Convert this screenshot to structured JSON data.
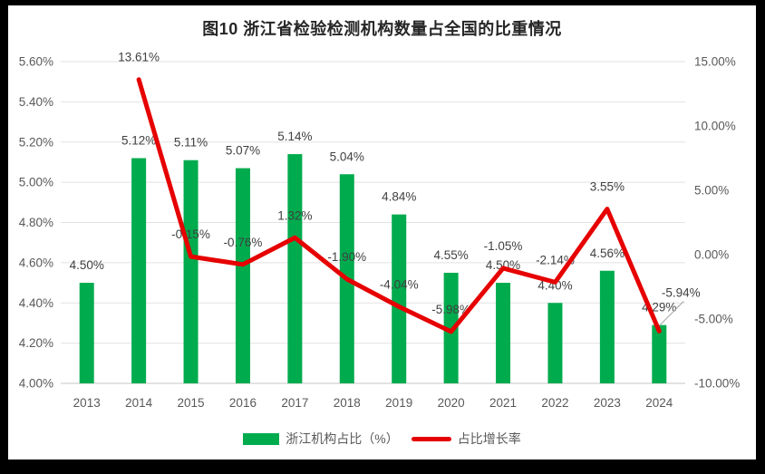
{
  "chart_data": {
    "type": "combo-bar-line",
    "title": "图10  浙江省检验检测机构数量占全国的比重情况",
    "categories": [
      "2013",
      "2014",
      "2015",
      "2016",
      "2017",
      "2018",
      "2019",
      "2020",
      "2021",
      "2022",
      "2023",
      "2024"
    ],
    "series": [
      {
        "name": "浙江机构占比（%）",
        "type": "bar",
        "axis": "left",
        "color": "#00AB4E",
        "values": [
          4.5,
          5.12,
          5.11,
          5.07,
          5.14,
          5.04,
          4.84,
          4.55,
          4.5,
          4.4,
          4.56,
          4.29
        ],
        "labels": [
          "4.50%",
          "5.12%",
          "5.11%",
          "5.07%",
          "5.14%",
          "5.04%",
          "4.84%",
          "4.55%",
          "4.50%",
          "4.40%",
          "4.56%",
          "4.29%"
        ]
      },
      {
        "name": "占比增长率",
        "type": "line",
        "axis": "right",
        "color": "#E60000",
        "values": [
          null,
          13.61,
          -0.15,
          -0.76,
          1.32,
          -1.9,
          -4.04,
          -5.98,
          -1.05,
          -2.14,
          3.55,
          -5.94
        ],
        "labels": [
          null,
          "13.61%",
          "-0.15%",
          "-0.76%",
          "1.32%",
          "-1.90%",
          "-4.04%",
          "-5.98%",
          "-1.05%",
          "-2.14%",
          "3.55%",
          "-5.94%"
        ],
        "callout_index": 11
      }
    ],
    "left_axis": {
      "min": 4.0,
      "max": 5.6,
      "ticks": [
        "5.60%",
        "5.40%",
        "5.20%",
        "5.00%",
        "4.80%",
        "4.60%",
        "4.40%",
        "4.20%",
        "4.00%"
      ]
    },
    "right_axis": {
      "min": -10,
      "max": 15,
      "ticks": [
        "15.00%",
        "10.00%",
        "5.00%",
        "0.00%",
        "-5.00%",
        "-10.00%"
      ]
    },
    "grid": true,
    "legend_position": "bottom",
    "colors": {
      "gridline": "#E2E2E2",
      "axis_line": "#C4C4C4",
      "leader_line": "#A6A6A6",
      "tick_text": "#595959",
      "label_text": "#404040",
      "title_text": "#262626",
      "frame": "#000000",
      "background": "#FFFFFF"
    }
  }
}
